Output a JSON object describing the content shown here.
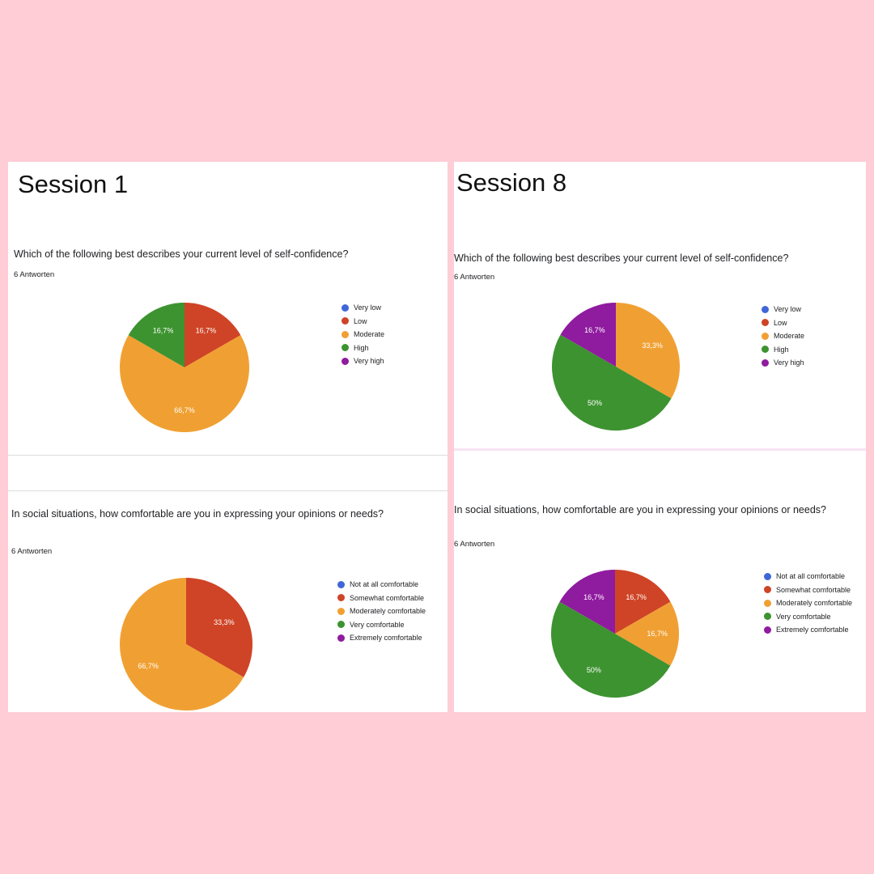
{
  "colors": {
    "background": "#ffcdd6",
    "blue": "#3f67d8",
    "red": "#cf4426",
    "orange": "#f0a032",
    "green": "#3d9330",
    "purple": "#8f1b9f"
  },
  "panels": [
    {
      "session_title": "Session 1",
      "charts": [
        {
          "question": "Which of the following best describes your current level of self-confidence?",
          "responses": "6 Antworten",
          "legend": [
            {
              "label": "Very low",
              "color": "#3f67d8"
            },
            {
              "label": "Low",
              "color": "#cf4426"
            },
            {
              "label": "Moderate",
              "color": "#f0a032"
            },
            {
              "label": "High",
              "color": "#3d9330"
            },
            {
              "label": "Very high",
              "color": "#8f1b9f"
            }
          ]
        },
        {
          "question": "In social situations, how comfortable are you in expressing your opinions or needs?",
          "responses": "6 Antworten",
          "legend": [
            {
              "label": "Not at all comfortable",
              "color": "#3f67d8"
            },
            {
              "label": "Somewhat comfortable",
              "color": "#cf4426"
            },
            {
              "label": "Moderately comfortable",
              "color": "#f0a032"
            },
            {
              "label": "Very comfortable",
              "color": "#3d9330"
            },
            {
              "label": "Extremely comfortable",
              "color": "#8f1b9f"
            }
          ]
        }
      ]
    },
    {
      "session_title": "Session 8",
      "charts": [
        {
          "question": "Which of the following best describes your current level of self-confidence?",
          "responses": "6 Antworten",
          "legend": [
            {
              "label": "Very low",
              "color": "#3f67d8"
            },
            {
              "label": "Low",
              "color": "#cf4426"
            },
            {
              "label": "Moderate",
              "color": "#f0a032"
            },
            {
              "label": "High",
              "color": "#3d9330"
            },
            {
              "label": "Very high",
              "color": "#8f1b9f"
            }
          ]
        },
        {
          "question": "In social situations, how comfortable are you in expressing your opinions or needs?",
          "responses": "6 Antworten",
          "legend": [
            {
              "label": "Not at all comfortable",
              "color": "#3f67d8"
            },
            {
              "label": "Somewhat comfortable",
              "color": "#cf4426"
            },
            {
              "label": "Moderately comfortable",
              "color": "#f0a032"
            },
            {
              "label": "Very comfortable",
              "color": "#3d9330"
            },
            {
              "label": "Extremely comfortable",
              "color": "#8f1b9f"
            }
          ]
        }
      ]
    }
  ],
  "chart_data": [
    {
      "type": "pie",
      "title": "Which of the following best describes your current level of self-confidence?",
      "categories": [
        "Very low",
        "Low",
        "Moderate",
        "High",
        "Very high"
      ],
      "values": [
        0,
        16.7,
        66.7,
        16.7,
        0
      ],
      "labels": [
        "",
        "16,7%",
        "66,7%",
        "16,7%",
        ""
      ],
      "colors": [
        "#3f67d8",
        "#cf4426",
        "#f0a032",
        "#3d9330",
        "#8f1b9f"
      ],
      "legend_position": "right"
    },
    {
      "type": "pie",
      "title": "In social situations, how comfortable are you in expressing your opinions or needs?",
      "categories": [
        "Not at all comfortable",
        "Somewhat comfortable",
        "Moderately comfortable",
        "Very comfortable",
        "Extremely comfortable"
      ],
      "values": [
        0,
        33.3,
        66.7,
        0,
        0
      ],
      "labels": [
        "",
        "33,3%",
        "66,7%",
        "",
        ""
      ],
      "colors": [
        "#3f67d8",
        "#cf4426",
        "#f0a032",
        "#3d9330",
        "#8f1b9f"
      ],
      "legend_position": "right"
    },
    {
      "type": "pie",
      "title": "Which of the following best describes your current level of self-confidence?",
      "categories": [
        "Very low",
        "Low",
        "Moderate",
        "High",
        "Very high"
      ],
      "values": [
        0,
        0,
        33.3,
        50,
        16.7
      ],
      "labels": [
        "",
        "",
        "33,3%",
        "50%",
        "16,7%"
      ],
      "colors": [
        "#3f67d8",
        "#cf4426",
        "#f0a032",
        "#3d9330",
        "#8f1b9f"
      ],
      "legend_position": "right"
    },
    {
      "type": "pie",
      "title": "In social situations, how comfortable are you in expressing your opinions or needs?",
      "categories": [
        "Not at all comfortable",
        "Somewhat comfortable",
        "Moderately comfortable",
        "Very comfortable",
        "Extremely comfortable"
      ],
      "values": [
        0,
        16.7,
        16.7,
        50,
        16.7
      ],
      "labels": [
        "",
        "16,7%",
        "16,7%",
        "50%",
        "16,7%"
      ],
      "colors": [
        "#3f67d8",
        "#cf4426",
        "#f0a032",
        "#3d9330",
        "#8f1b9f"
      ],
      "legend_position": "right"
    }
  ]
}
